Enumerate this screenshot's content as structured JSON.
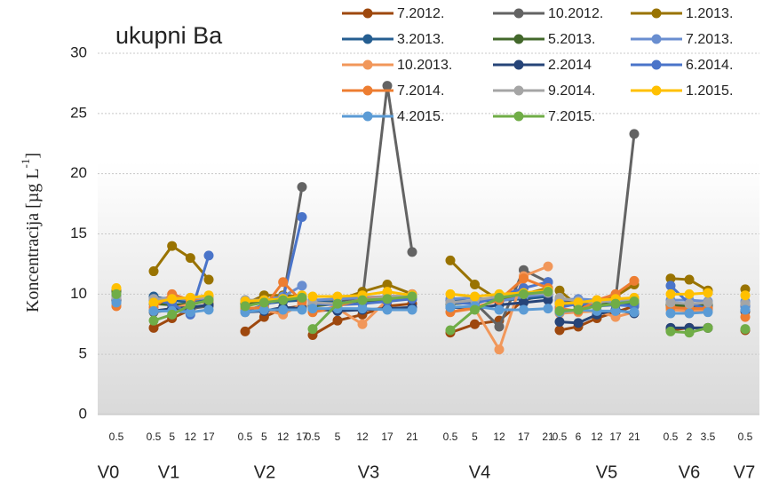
{
  "chart_data": {
    "type": "line",
    "title": "ukupni Ba",
    "ylabel": [
      "Koncentracija [µg L",
      "-1",
      "]"
    ],
    "ylim": [
      0,
      30
    ],
    "yticks": [
      0,
      5,
      10,
      15,
      20,
      25,
      30
    ],
    "grid": true,
    "legend": "top-right",
    "categories": [
      {
        "name": "V0",
        "sub": [
          "0.5"
        ]
      },
      {
        "name": "V1",
        "sub": [
          "0.5",
          "5",
          "12",
          "17"
        ]
      },
      {
        "name": "V2",
        "sub": [
          "0.5",
          "5",
          "12",
          "17"
        ]
      },
      {
        "name": "V3",
        "sub": [
          "0.5",
          "5",
          "12",
          "17",
          "21"
        ]
      },
      {
        "name": "V4",
        "sub": [
          "0.5",
          "5",
          "12",
          "17",
          "21"
        ]
      },
      {
        "name": "V5",
        "sub": [
          "0.5",
          "6",
          "12",
          "17",
          "21"
        ]
      },
      {
        "name": "V6",
        "sub": [
          "0.5",
          "2",
          "3.5"
        ]
      },
      {
        "name": "V7",
        "sub": [
          "0.5"
        ]
      }
    ],
    "series": [
      {
        "name": "7.2012.",
        "color": "#9e480e",
        "values": [
          [
            9.5
          ],
          [
            7.2,
            8,
            8.7,
            9.2
          ],
          [
            6.9,
            8.1,
            8.8,
            9
          ],
          [
            6.6,
            7.8,
            8.3,
            9,
            9.2
          ],
          [
            6.8,
            7.5,
            7.8,
            9.5,
            10
          ],
          [
            7,
            7.3,
            8,
            8.5,
            9
          ],
          [
            7,
            7.2,
            7.2
          ],
          [
            7
          ]
        ]
      },
      {
        "name": "10.2012.",
        "color": "#636363",
        "values": [
          [
            9.8
          ],
          [
            8.5,
            8.7,
            8.8,
            9
          ],
          [
            9.2,
            9.3,
            9.5,
            18.9
          ],
          [
            9.3,
            9.4,
            9.5,
            27.3,
            13.5
          ],
          [
            9.2,
            9.3,
            7.3,
            12,
            11
          ],
          [
            9.5,
            9.3,
            9.4,
            9.5,
            23.3
          ],
          [
            9,
            9,
            9
          ],
          [
            9
          ]
        ]
      },
      {
        "name": "1.2013.",
        "color": "#997300",
        "values": [
          [
            10.3
          ],
          [
            11.9,
            14,
            13,
            11.2
          ],
          [
            9.2,
            9.9,
            9.9,
            9.8
          ],
          [
            9.3,
            9.5,
            10.2,
            10.8,
            10
          ],
          [
            12.8,
            10.8,
            9.5,
            10,
            10.5
          ],
          [
            10.3,
            9,
            9.3,
            9.8,
            10.8
          ],
          [
            11.3,
            11.2,
            10.3
          ],
          [
            10.4
          ]
        ]
      },
      {
        "name": "3.2013.",
        "color": "#255e91",
        "values": [
          [
            9.6
          ],
          [
            9.8,
            9.5,
            9.3,
            9.5
          ],
          [
            9.5,
            9.2,
            9.4,
            9.5
          ],
          [
            9.4,
            9.3,
            9.4,
            9.5,
            9.6
          ],
          [
            9.5,
            9.4,
            9.5,
            9.6,
            9.8
          ],
          [
            9.6,
            9.5,
            9.4,
            9.3,
            9.2
          ],
          [
            9.2,
            9.1,
            9.1
          ],
          [
            9.2
          ]
        ]
      },
      {
        "name": "5.2013.",
        "color": "#43682b",
        "values": [
          [
            10.2
          ],
          [
            9.2,
            9.1,
            9.2,
            9.4
          ],
          [
            9.3,
            9.2,
            9.8,
            9.6
          ],
          [
            9,
            9.2,
            9.3,
            9.5,
            9.8
          ],
          [
            9.2,
            9.3,
            9.7,
            10,
            10.2
          ],
          [
            9.2,
            9.1,
            9.2,
            9.3,
            9.4
          ],
          [
            9.1,
            9,
            9.2
          ],
          [
            9.3
          ]
        ]
      },
      {
        "name": "7.2013.",
        "color": "#698ed0",
        "values": [
          [
            9.3
          ],
          [
            9.6,
            9.7,
            9.5,
            9.7
          ],
          [
            9.4,
            9.5,
            9.8,
            10.7
          ],
          [
            9.5,
            9.6,
            9.7,
            9.8,
            9.8
          ],
          [
            9.6,
            9.7,
            9.4,
            9.8,
            10
          ],
          [
            9.5,
            9.6,
            9.5,
            9.3,
            9.4
          ],
          [
            9.5,
            9.5,
            9.4
          ],
          [
            9.4
          ]
        ]
      },
      {
        "name": "10.2013.",
        "color": "#f1975a",
        "values": [
          [
            9
          ],
          [
            8.6,
            8.8,
            9.2,
            9.4
          ],
          [
            8.9,
            8.7,
            8.3,
            9.2
          ],
          [
            8.5,
            8.8,
            7.5,
            9.5,
            10
          ],
          [
            8.5,
            8.8,
            5.4,
            11.5,
            12.3
          ],
          [
            8.4,
            8.5,
            8.6,
            8.1,
            8.5
          ],
          [
            8.7,
            8.6,
            8.6
          ],
          [
            8.5
          ]
        ]
      },
      {
        "name": "2.2014",
        "color": "#264478",
        "values": [
          [
            9.4
          ],
          [
            8.6,
            8.8,
            8.9,
            9.1
          ],
          [
            8.5,
            8.6,
            8.9,
            8.8
          ],
          [
            8.8,
            8.6,
            8.7,
            8.8,
            8.9
          ],
          [
            8.9,
            8.8,
            9.1,
            9.3,
            9.5
          ],
          [
            7.7,
            7.6,
            8.3,
            8.7,
            8.4
          ],
          [
            7.2,
            7.2,
            7.2
          ],
          [
            8.6
          ]
        ]
      },
      {
        "name": "6.2014.",
        "color": "#4a74c9",
        "values": [
          [
            9.8
          ],
          [
            9.5,
            9.2,
            8.3,
            13.2
          ],
          [
            8.6,
            9.1,
            9.6,
            16.4
          ],
          [
            9.2,
            9.1,
            9.2,
            9.4,
            9.6
          ],
          [
            9.3,
            9.2,
            9.8,
            10.5,
            11
          ],
          [
            8.9,
            9.2,
            9,
            9.1,
            9
          ],
          [
            10.7,
            9.2,
            8.8
          ],
          [
            9
          ]
        ]
      },
      {
        "name": "7.2014.",
        "color": "#ed7d31",
        "values": [
          [
            9
          ],
          [
            8.9,
            10,
            9.5,
            9.8
          ],
          [
            8.8,
            8.9,
            11,
            9.4
          ],
          [
            8.5,
            9,
            9.6,
            9.8,
            9.9
          ],
          [
            8.5,
            8.9,
            9.5,
            11.3,
            10.5
          ],
          [
            8.8,
            8.6,
            9.5,
            10,
            11.1
          ],
          [
            8.9,
            8.8,
            8.8
          ],
          [
            8.1
          ]
        ]
      },
      {
        "name": "9.2014.",
        "color": "#a5a5a5",
        "values": [
          [
            9.7
          ],
          [
            9.6,
            9.6,
            9.7,
            9.7
          ],
          [
            9.5,
            9.5,
            9.6,
            9.8
          ],
          [
            9.3,
            9.2,
            9.5,
            9.8,
            9.9
          ],
          [
            9.3,
            9.5,
            9.8,
            10,
            10.1
          ],
          [
            9.7,
            9.4,
            9.3,
            9.5,
            9.6
          ],
          [
            9.3,
            9.2,
            9.3
          ],
          [
            9.2
          ]
        ]
      },
      {
        "name": "1.2015.",
        "color": "#ffc000",
        "values": [
          [
            10.5
          ],
          [
            9.3,
            9.6,
            9.7,
            9.9
          ],
          [
            9.4,
            9.5,
            9.6,
            9.9
          ],
          [
            9.8,
            9.8,
            9.9,
            10.2,
            9.9
          ],
          [
            10,
            9.8,
            10,
            10.1,
            10.3
          ],
          [
            9.2,
            9.3,
            9.5,
            9.6,
            9.7
          ],
          [
            10,
            10,
            10.1
          ],
          [
            9.9
          ]
        ]
      },
      {
        "name": "4.2015.",
        "color": "#5b9bd5",
        "values": [
          [
            9.3
          ],
          [
            8.6,
            8.6,
            8.5,
            8.7
          ],
          [
            8.5,
            8.7,
            8.7,
            8.7
          ],
          [
            8.8,
            8.8,
            8.8,
            8.7,
            8.7
          ],
          [
            8.9,
            9,
            8.7,
            8.7,
            8.8
          ],
          [
            8.5,
            8.7,
            8.6,
            8.6,
            8.5
          ],
          [
            8.4,
            8.4,
            8.5
          ],
          [
            8.7
          ]
        ]
      },
      {
        "name": "7.2015.",
        "color": "#70ad47",
        "values": [
          [
            10
          ],
          [
            7.8,
            8.3,
            9.1,
            9.5
          ],
          [
            9,
            9.3,
            9.5,
            9.7
          ],
          [
            7.1,
            9.2,
            9.5,
            9.6,
            9.8
          ],
          [
            7,
            8.7,
            9.7,
            10,
            10.2
          ],
          [
            8.6,
            8.7,
            9,
            9.2,
            9.4
          ],
          [
            6.9,
            6.8,
            7.2
          ],
          [
            7.1
          ]
        ]
      }
    ]
  }
}
